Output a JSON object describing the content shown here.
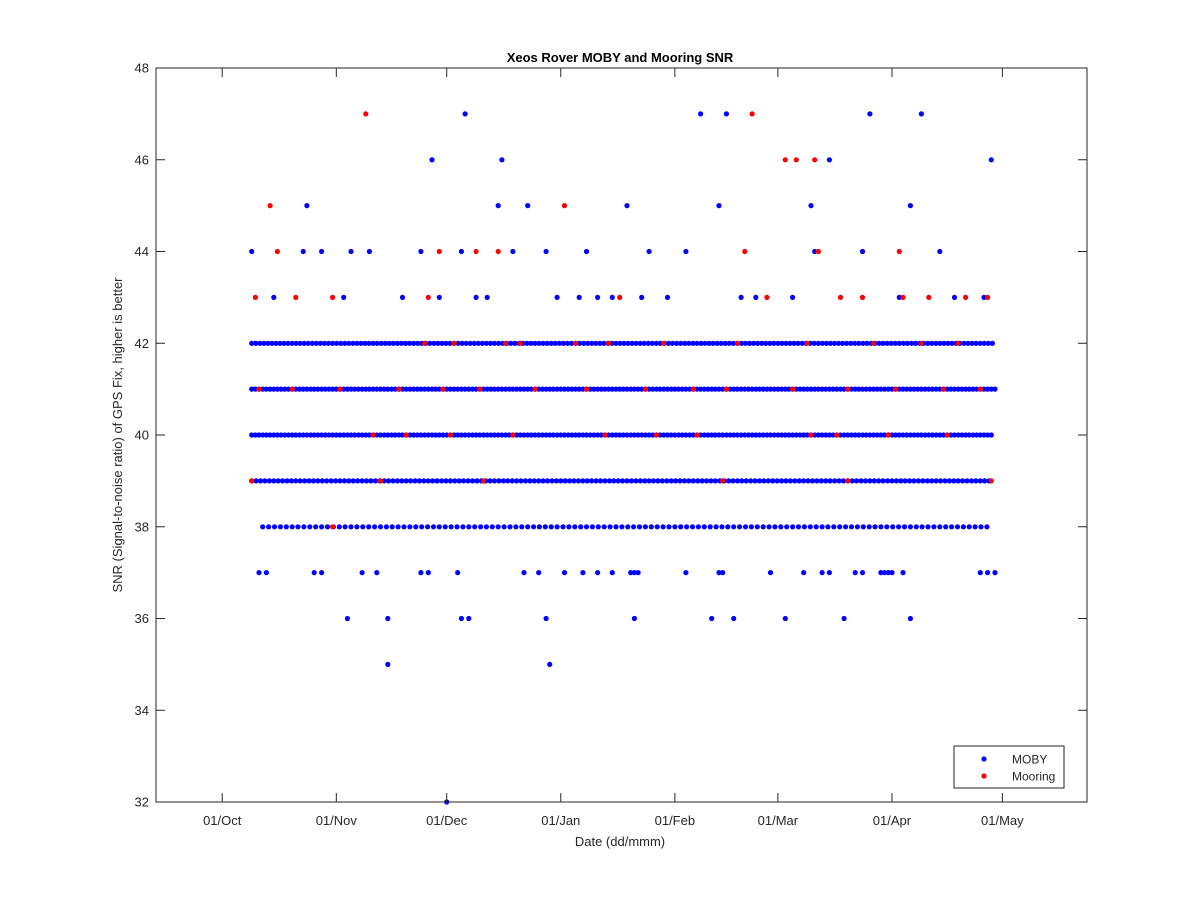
{
  "chart_data": {
    "type": "scatter",
    "title": "Xeos Rover MOBY and Mooring SNR",
    "xlabel": "Date (dd/mmm)",
    "ylabel": "SNR (Signal-to-noise ratio) of GPS Fix, higher is better",
    "x_ticks": [
      {
        "date": "2017-10-01",
        "label": "01/Oct"
      },
      {
        "date": "2017-11-01",
        "label": "01/Nov"
      },
      {
        "date": "2017-12-01",
        "label": "01/Dec"
      },
      {
        "date": "2018-01-01",
        "label": "01/Jan"
      },
      {
        "date": "2018-02-01",
        "label": "01/Feb"
      },
      {
        "date": "2018-03-01",
        "label": "01/Mar"
      },
      {
        "date": "2018-04-01",
        "label": "01/Apr"
      },
      {
        "date": "2018-05-01",
        "label": "01/May"
      }
    ],
    "xlim": [
      "2017-09-13",
      "2018-05-24"
    ],
    "ylim": [
      32,
      48
    ],
    "y_ticks": [
      32,
      34,
      36,
      38,
      40,
      42,
      44,
      46,
      48
    ],
    "grid": false,
    "legend_position": "bottom-right",
    "series": [
      {
        "name": "MOBY",
        "color": "#0000ff",
        "points": [
          [
            "2017-10-09",
            44
          ],
          [
            "2017-10-15",
            43
          ],
          [
            "2017-10-23",
            44
          ],
          [
            "2017-10-24",
            45
          ],
          [
            "2017-10-28",
            44
          ],
          [
            "2017-11-03",
            43
          ],
          [
            "2017-11-05",
            44
          ],
          [
            "2017-11-10",
            44
          ],
          [
            "2017-11-19",
            43
          ],
          [
            "2017-11-24",
            44
          ],
          [
            "2017-11-27",
            46
          ],
          [
            "2017-11-29",
            43
          ],
          [
            "2017-12-05",
            44
          ],
          [
            "2017-12-06",
            47
          ],
          [
            "2017-12-09",
            43
          ],
          [
            "2017-12-12",
            43
          ],
          [
            "2017-12-15",
            45
          ],
          [
            "2017-12-16",
            46
          ],
          [
            "2017-12-19",
            44
          ],
          [
            "2017-12-23",
            45
          ],
          [
            "2017-12-28",
            44
          ],
          [
            "2017-12-31",
            43
          ],
          [
            "2018-01-06",
            43
          ],
          [
            "2018-01-08",
            44
          ],
          [
            "2018-01-11",
            43
          ],
          [
            "2018-01-15",
            43
          ],
          [
            "2018-01-19",
            45
          ],
          [
            "2018-01-23",
            43
          ],
          [
            "2018-01-25",
            44
          ],
          [
            "2018-01-30",
            43
          ],
          [
            "2018-02-04",
            44
          ],
          [
            "2018-02-08",
            47
          ],
          [
            "2018-02-13",
            45
          ],
          [
            "2018-02-15",
            47
          ],
          [
            "2018-02-19",
            43
          ],
          [
            "2018-02-23",
            43
          ],
          [
            "2018-03-05",
            43
          ],
          [
            "2018-03-10",
            45
          ],
          [
            "2018-03-11",
            44
          ],
          [
            "2018-03-15",
            46
          ],
          [
            "2018-03-24",
            44
          ],
          [
            "2018-03-26",
            47
          ],
          [
            "2018-04-03",
            43
          ],
          [
            "2018-04-06",
            45
          ],
          [
            "2018-04-09",
            47
          ],
          [
            "2018-04-14",
            44
          ],
          [
            "2018-04-18",
            43
          ],
          [
            "2018-04-26",
            43
          ],
          [
            "2018-04-28",
            46
          ],
          [
            "2017-11-04",
            36
          ],
          [
            "2017-11-15",
            35
          ],
          [
            "2017-11-15",
            36
          ],
          [
            "2017-12-01",
            32
          ],
          [
            "2017-12-05",
            36
          ],
          [
            "2017-12-07",
            36
          ],
          [
            "2017-12-28",
            36
          ],
          [
            "2017-12-29",
            35
          ],
          [
            "2018-01-21",
            36
          ],
          [
            "2018-02-11",
            36
          ],
          [
            "2018-02-17",
            36
          ],
          [
            "2018-03-03",
            36
          ],
          [
            "2018-03-19",
            36
          ],
          [
            "2018-04-06",
            36
          ],
          [
            "2017-10-11",
            37
          ],
          [
            "2017-10-13",
            37
          ],
          [
            "2017-10-26",
            37
          ],
          [
            "2017-10-28",
            37
          ],
          [
            "2017-11-08",
            37
          ],
          [
            "2017-11-12",
            37
          ],
          [
            "2017-11-24",
            37
          ],
          [
            "2017-11-26",
            37
          ],
          [
            "2017-12-04",
            37
          ],
          [
            "2017-12-22",
            37
          ],
          [
            "2017-12-26",
            37
          ],
          [
            "2018-01-02",
            37
          ],
          [
            "2018-01-07",
            37
          ],
          [
            "2018-01-11",
            37
          ],
          [
            "2018-01-15",
            37
          ],
          [
            "2018-01-20",
            37
          ],
          [
            "2018-01-21",
            37
          ],
          [
            "2018-01-22",
            37
          ],
          [
            "2018-02-04",
            37
          ],
          [
            "2018-02-13",
            37
          ],
          [
            "2018-02-14",
            37
          ],
          [
            "2018-02-27",
            37
          ],
          [
            "2018-03-08",
            37
          ],
          [
            "2018-03-13",
            37
          ],
          [
            "2018-03-15",
            37
          ],
          [
            "2018-03-22",
            37
          ],
          [
            "2018-03-24",
            37
          ],
          [
            "2018-03-29",
            37
          ],
          [
            "2018-03-30",
            37
          ],
          [
            "2018-03-31",
            37
          ],
          [
            "2018-04-01",
            37
          ],
          [
            "2018-04-04",
            37
          ],
          [
            "2018-04-25",
            37
          ],
          [
            "2018-04-27",
            37
          ],
          [
            "2018-04-29",
            37
          ]
        ],
        "dense_ranges": [
          {
            "y": 42,
            "start": "2017-10-09",
            "end": "2018-04-29",
            "step_days": 1.1
          },
          {
            "y": 41,
            "start": "2017-10-09",
            "end": "2018-04-29",
            "step_days": 1.0
          },
          {
            "y": 40,
            "start": "2017-10-09",
            "end": "2018-04-28",
            "step_days": 1.0
          },
          {
            "y": 39,
            "start": "2017-10-09",
            "end": "2018-04-28",
            "step_days": 1.2
          },
          {
            "y": 38,
            "start": "2017-10-12",
            "end": "2018-04-28",
            "step_days": 1.6
          }
        ]
      },
      {
        "name": "Mooring",
        "color": "#ff0000",
        "points": [
          [
            "2017-11-09",
            47
          ],
          [
            "2018-02-22",
            47
          ],
          [
            "2018-03-03",
            46
          ],
          [
            "2018-03-06",
            46
          ],
          [
            "2018-03-11",
            46
          ],
          [
            "2017-10-14",
            45
          ],
          [
            "2018-01-02",
            45
          ],
          [
            "2017-10-16",
            44
          ],
          [
            "2017-11-29",
            44
          ],
          [
            "2017-12-09",
            44
          ],
          [
            "2017-12-15",
            44
          ],
          [
            "2018-02-20",
            44
          ],
          [
            "2018-03-12",
            44
          ],
          [
            "2018-04-03",
            44
          ],
          [
            "2017-10-10",
            43
          ],
          [
            "2017-10-21",
            43
          ],
          [
            "2017-10-31",
            43
          ],
          [
            "2017-11-26",
            43
          ],
          [
            "2018-01-17",
            43
          ],
          [
            "2018-02-26",
            43
          ],
          [
            "2018-03-18",
            43
          ],
          [
            "2018-03-24",
            43
          ],
          [
            "2018-04-04",
            43
          ],
          [
            "2018-04-11",
            43
          ],
          [
            "2018-04-21",
            43
          ],
          [
            "2018-04-27",
            43
          ],
          [
            "2017-11-25",
            42
          ],
          [
            "2017-12-03",
            42
          ],
          [
            "2017-12-17",
            42
          ],
          [
            "2017-12-21",
            42
          ],
          [
            "2018-01-05",
            42
          ],
          [
            "2018-01-14",
            42
          ],
          [
            "2018-01-29",
            42
          ],
          [
            "2018-02-18",
            42
          ],
          [
            "2018-03-09",
            42
          ],
          [
            "2018-03-27",
            42
          ],
          [
            "2018-04-09",
            42
          ],
          [
            "2018-04-19",
            42
          ],
          [
            "2017-10-11",
            41
          ],
          [
            "2017-10-20",
            41
          ],
          [
            "2017-11-02",
            41
          ],
          [
            "2017-11-18",
            41
          ],
          [
            "2017-11-30",
            41
          ],
          [
            "2017-12-10",
            41
          ],
          [
            "2017-12-25",
            41
          ],
          [
            "2018-01-08",
            41
          ],
          [
            "2018-01-24",
            41
          ],
          [
            "2018-02-06",
            41
          ],
          [
            "2018-02-15",
            41
          ],
          [
            "2018-03-05",
            41
          ],
          [
            "2018-03-20",
            41
          ],
          [
            "2018-04-02",
            41
          ],
          [
            "2018-04-15",
            41
          ],
          [
            "2018-04-25",
            41
          ],
          [
            "2017-11-11",
            40
          ],
          [
            "2017-11-20",
            40
          ],
          [
            "2017-12-02",
            40
          ],
          [
            "2017-12-19",
            40
          ],
          [
            "2018-01-13",
            40
          ],
          [
            "2018-01-27",
            40
          ],
          [
            "2018-02-07",
            40
          ],
          [
            "2018-03-10",
            40
          ],
          [
            "2018-03-17",
            40
          ],
          [
            "2018-03-31",
            40
          ],
          [
            "2018-04-16",
            40
          ],
          [
            "2017-10-09",
            39
          ],
          [
            "2017-11-13",
            39
          ],
          [
            "2017-12-11",
            39
          ],
          [
            "2018-02-14",
            39
          ],
          [
            "2018-03-20",
            39
          ],
          [
            "2018-04-28",
            39
          ],
          [
            "2017-10-31",
            38
          ]
        ],
        "dense_ranges": []
      }
    ]
  }
}
